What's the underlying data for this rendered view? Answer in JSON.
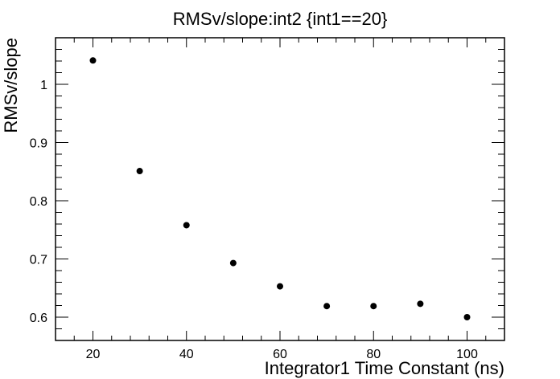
{
  "chart_data": {
    "type": "scatter",
    "title": "RMSv/slope:int2 {int1==20}",
    "xlabel": "Integrator1 Time Constant  (ns)",
    "ylabel": "RMSv/slope",
    "xlim": [
      12,
      108
    ],
    "ylim": [
      0.56,
      1.08
    ],
    "x_ticks": [
      20,
      40,
      60,
      80,
      100
    ],
    "y_ticks": [
      0.6,
      0.7,
      0.8,
      0.9,
      1
    ],
    "x_tick_labels": [
      "20",
      "40",
      "60",
      "80",
      "100"
    ],
    "y_tick_labels": [
      "0.6",
      "0.7",
      "0.8",
      "0.9",
      "1"
    ],
    "grid": false,
    "marker_color": "#000000",
    "points": [
      {
        "x": 20,
        "y": 1.041
      },
      {
        "x": 30,
        "y": 0.851
      },
      {
        "x": 40,
        "y": 0.758
      },
      {
        "x": 50,
        "y": 0.693
      },
      {
        "x": 60,
        "y": 0.653
      },
      {
        "x": 70,
        "y": 0.619
      },
      {
        "x": 80,
        "y": 0.619
      },
      {
        "x": 90,
        "y": 0.623
      },
      {
        "x": 100,
        "y": 0.6
      }
    ]
  }
}
